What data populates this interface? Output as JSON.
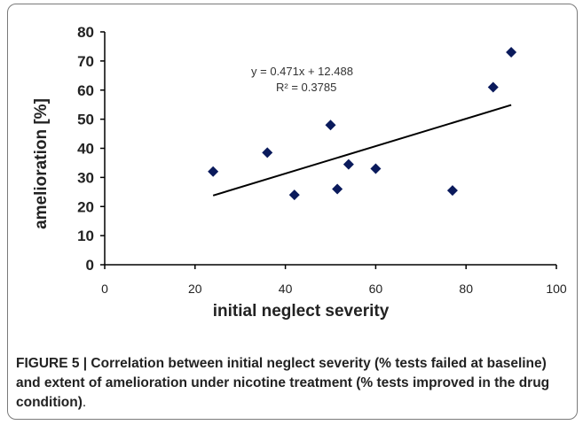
{
  "chart_data": {
    "type": "scatter",
    "xlabel": "initial neglect severity",
    "ylabel": "amelioration [%]",
    "xlim": [
      0,
      100
    ],
    "ylim": [
      0,
      80
    ],
    "xticks": [
      0,
      20,
      40,
      60,
      80,
      100
    ],
    "yticks": [
      0,
      10,
      20,
      30,
      40,
      50,
      60,
      70,
      80
    ],
    "grid": false,
    "points": [
      {
        "x": 24,
        "y": 32
      },
      {
        "x": 36,
        "y": 38.5
      },
      {
        "x": 42,
        "y": 24
      },
      {
        "x": 50,
        "y": 48
      },
      {
        "x": 51.5,
        "y": 26
      },
      {
        "x": 54,
        "y": 34.5
      },
      {
        "x": 60,
        "y": 33
      },
      {
        "x": 77,
        "y": 25.5
      },
      {
        "x": 86,
        "y": 61
      },
      {
        "x": 90,
        "y": 73
      }
    ],
    "trendline": {
      "slope": 0.471,
      "intercept": 12.488,
      "x_range": [
        24,
        90
      ]
    },
    "annotations": {
      "equation": "y = 0.471x + 12.488",
      "r_squared": "R² = 0.3785"
    },
    "marker_color": "#0a1a5c",
    "line_color": "#000000"
  },
  "caption": {
    "text": "FIGURE 5 | Correlation between initial neglect severity (% tests failed at baseline) and extent of amelioration under nicotine treatment (% tests improved in the drug condition)",
    "period": "."
  }
}
